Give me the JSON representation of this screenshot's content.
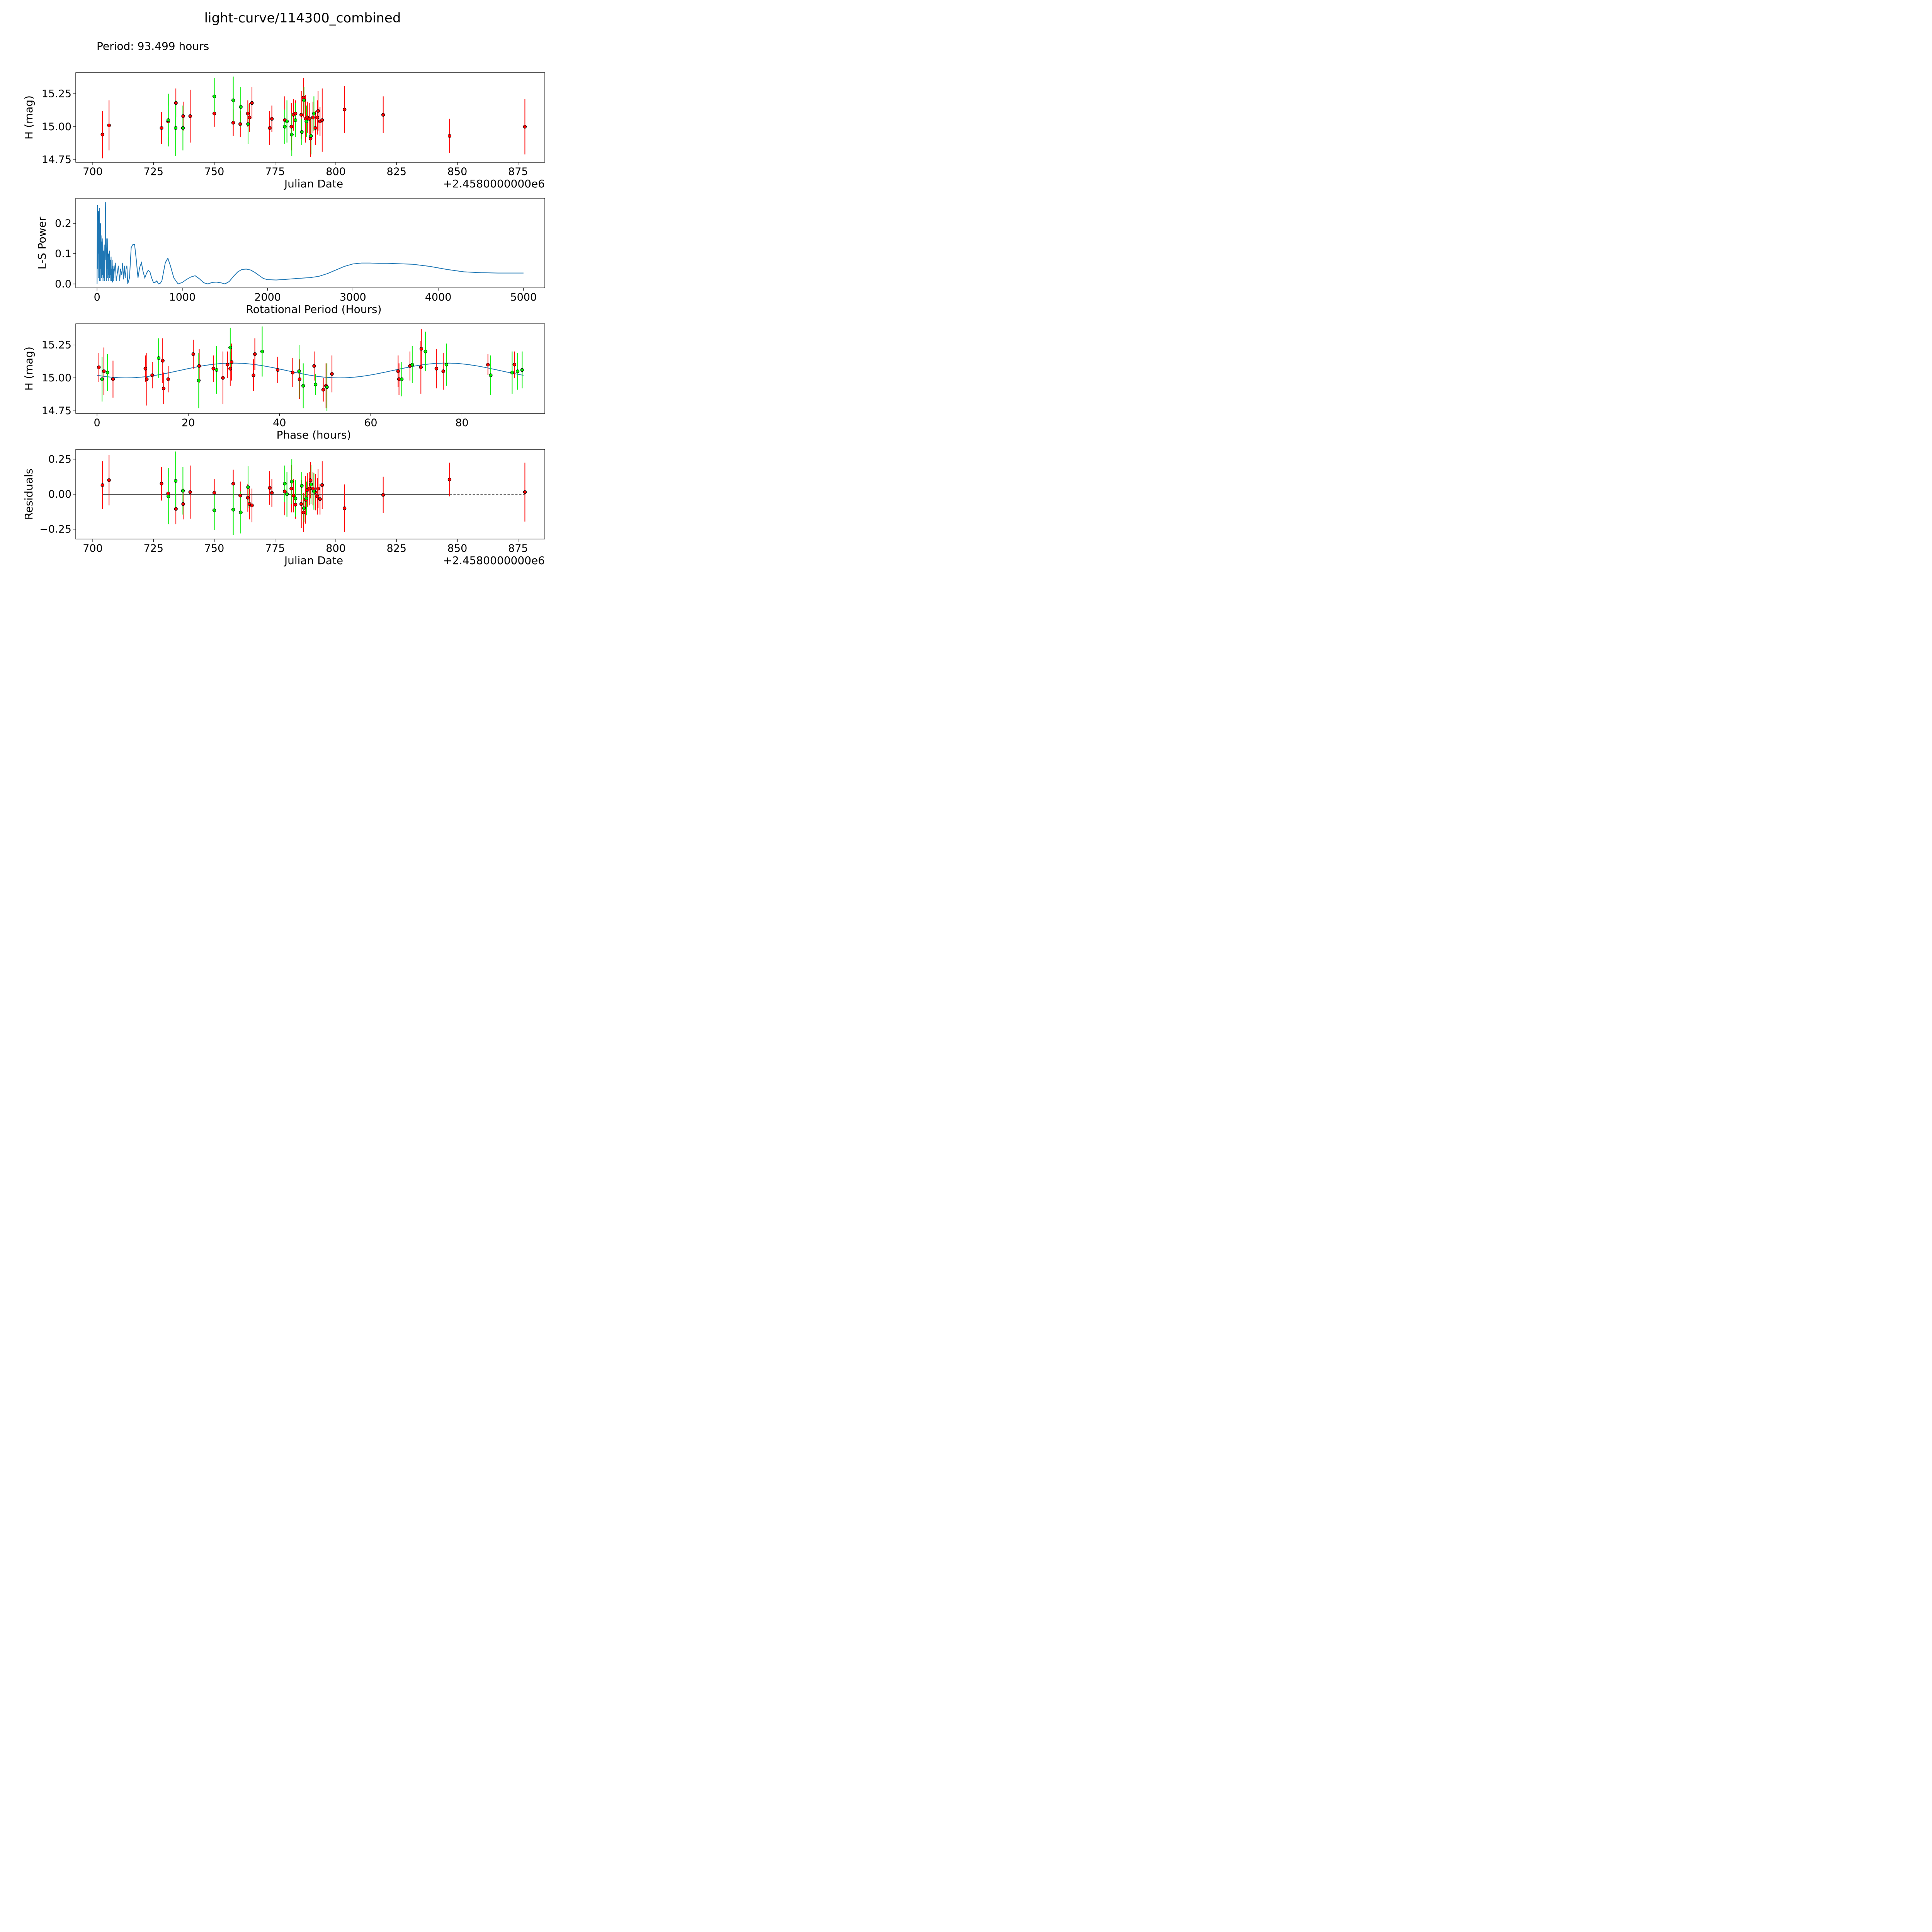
{
  "figure": {
    "title": "light-curve/114300_combined",
    "period_text": "Period: 93.499 hours"
  },
  "chart_data": [
    {
      "type": "scatter",
      "id": "raw",
      "xlabel": "Julian Date",
      "ylabel": "H (mag)",
      "offset_label": "+2.4580000000e6",
      "xlim": [
        693,
        886
      ],
      "ylim": [
        14.73,
        15.41
      ],
      "xticks": [
        700,
        725,
        750,
        775,
        800,
        825,
        850,
        875
      ],
      "yticks": [
        14.75,
        15.0,
        15.25
      ],
      "xtick_labels": [
        "700",
        "725",
        "750",
        "775",
        "800",
        "825",
        "850",
        "875"
      ],
      "ytick_labels": [
        "14.75",
        "15.00",
        "15.25"
      ],
      "series": [
        {
          "name": "red",
          "color": "#ff0000",
          "x": [
            704.0,
            706.7,
            728.3,
            731.0,
            734.2,
            737.2,
            740.1,
            750.0,
            757.8,
            760.7,
            763.8,
            764.5,
            765.5,
            772.8,
            773.7,
            779.0,
            781.7,
            782.6,
            783.4,
            785.8,
            786.7,
            787.6,
            788.3,
            789.1,
            789.6,
            790.6,
            791.6,
            792.4,
            792.7,
            793.5,
            794.4,
            803.6,
            819.5,
            846.8,
            877.8
          ],
          "y": [
            14.94,
            15.01,
            14.99,
            15.04,
            15.18,
            15.08,
            15.08,
            15.1,
            15.03,
            15.02,
            15.1,
            15.07,
            15.18,
            14.99,
            15.06,
            15.05,
            15.0,
            15.09,
            15.1,
            15.09,
            15.22,
            15.06,
            15.07,
            15.06,
            14.91,
            15.07,
            14.99,
            15.07,
            15.12,
            15.04,
            15.05,
            15.13,
            15.09,
            14.93,
            15.0
          ],
          "err": [
            0.18,
            0.19,
            0.12,
            0.12,
            0.11,
            0.11,
            0.2,
            0.1,
            0.1,
            0.1,
            0.1,
            0.11,
            0.12,
            0.13,
            0.1,
            0.18,
            0.18,
            0.12,
            0.1,
            0.18,
            0.15,
            0.18,
            0.12,
            0.12,
            0.14,
            0.12,
            0.13,
            0.13,
            0.15,
            0.11,
            0.24,
            0.18,
            0.14,
            0.13,
            0.21
          ]
        },
        {
          "name": "green",
          "color": "#00ee00",
          "x": [
            731.1,
            734.1,
            737.1,
            750.0,
            757.8,
            760.9,
            763.9,
            779.0,
            779.9,
            781.9,
            783.4,
            786.0,
            786.9,
            787.9,
            789.8,
            791.0
          ],
          "y": [
            15.05,
            14.99,
            14.99,
            15.23,
            15.2,
            15.15,
            15.02,
            15.0,
            15.04,
            14.94,
            15.05,
            14.96,
            15.2,
            15.04,
            14.93,
            15.1
          ],
          "err": [
            0.2,
            0.21,
            0.17,
            0.14,
            0.18,
            0.15,
            0.15,
            0.13,
            0.16,
            0.16,
            0.13,
            0.1,
            0.1,
            0.12,
            0.14,
            0.13
          ]
        }
      ]
    },
    {
      "type": "line",
      "id": "periodogram",
      "xlabel": "Rotational Period (Hours)",
      "ylabel": "L-S Power",
      "xlim": [
        -250,
        5250
      ],
      "ylim": [
        -0.013,
        0.283
      ],
      "xticks": [
        0,
        1000,
        2000,
        3000,
        4000,
        5000
      ],
      "yticks": [
        0.0,
        0.1,
        0.2
      ],
      "xtick_labels": [
        "0",
        "1000",
        "2000",
        "3000",
        "4000",
        "5000"
      ],
      "ytick_labels": [
        "0.0",
        "0.1",
        "0.2"
      ],
      "line_color": "#1f77b4",
      "x": [
        0,
        4,
        7,
        10,
        14,
        17,
        20,
        24,
        27,
        30,
        34,
        37,
        40,
        44,
        47,
        50,
        54,
        57,
        60,
        64,
        67,
        70,
        74,
        77,
        80,
        84,
        87,
        90,
        94,
        97,
        100,
        104,
        107,
        110,
        114,
        117,
        120,
        124,
        127,
        130,
        134,
        137,
        140,
        144,
        147,
        150,
        154,
        157,
        160,
        164,
        167,
        170,
        174,
        177,
        180,
        184,
        187,
        190,
        194,
        197,
        200,
        215,
        225,
        240,
        250,
        265,
        275,
        290,
        300,
        310,
        320,
        330,
        340,
        350,
        360,
        380,
        400,
        420,
        440,
        460,
        480,
        500,
        520,
        540,
        560,
        580,
        600,
        620,
        640,
        660,
        680,
        700,
        720,
        740,
        760,
        780,
        800,
        830,
        860,
        900,
        950,
        1000,
        1050,
        1100,
        1150,
        1200,
        1250,
        1300,
        1350,
        1400,
        1450,
        1500,
        1550,
        1600,
        1650,
        1700,
        1750,
        1800,
        1850,
        1900,
        1950,
        2000,
        2100,
        2200,
        2300,
        2400,
        2500,
        2600,
        2700,
        2800,
        2900,
        3000,
        3100,
        3200,
        3300,
        3400,
        3500,
        3700,
        3900,
        4100,
        4300,
        4500,
        4700,
        4900,
        5000
      ],
      "y": [
        0.0,
        0.26,
        0.05,
        0.21,
        0.02,
        0.24,
        0.1,
        0.18,
        0.01,
        0.25,
        0.05,
        0.13,
        0.2,
        0.01,
        0.16,
        0.09,
        0.02,
        0.14,
        0.06,
        0.03,
        0.15,
        0.01,
        0.11,
        0.06,
        0.02,
        0.13,
        0.04,
        0.01,
        0.1,
        0.22,
        0.27,
        0.08,
        0.15,
        0.01,
        0.12,
        0.05,
        0.15,
        0.02,
        0.09,
        0.03,
        0.1,
        0.01,
        0.07,
        0.11,
        0.02,
        0.06,
        0.01,
        0.08,
        0.03,
        0.09,
        0.01,
        0.05,
        0.02,
        0.08,
        0.005,
        0.04,
        0.06,
        0.01,
        0.05,
        0.02,
        0.04,
        0.07,
        0.01,
        0.04,
        0.06,
        0.01,
        0.05,
        0.03,
        0.07,
        0.015,
        0.06,
        0.02,
        0.05,
        0.06,
        0.0,
        0.02,
        0.12,
        0.13,
        0.13,
        0.08,
        0.02,
        0.055,
        0.07,
        0.04,
        0.02,
        0.035,
        0.045,
        0.04,
        0.02,
        0.005,
        0.005,
        0.01,
        0.0,
        0.002,
        0.01,
        0.04,
        0.07,
        0.085,
        0.06,
        0.02,
        0.0,
        0.005,
        0.015,
        0.023,
        0.027,
        0.017,
        0.004,
        0.0,
        0.005,
        0.006,
        0.004,
        0.0,
        0.008,
        0.025,
        0.04,
        0.048,
        0.049,
        0.046,
        0.038,
        0.028,
        0.018,
        0.014,
        0.013,
        0.015,
        0.017,
        0.019,
        0.021,
        0.025,
        0.034,
        0.046,
        0.058,
        0.066,
        0.069,
        0.069,
        0.068,
        0.068,
        0.067,
        0.065,
        0.058,
        0.048,
        0.04,
        0.037,
        0.036,
        0.036,
        0.036
      ]
    },
    {
      "type": "scatter",
      "id": "phased",
      "xlabel": "Phase (hours)",
      "ylabel": "H (mag)",
      "xlim": [
        -4.67,
        98.17
      ],
      "ylim": [
        14.73,
        15.41
      ],
      "xticks": [
        0,
        20,
        40,
        60,
        80
      ],
      "yticks": [
        14.75,
        15.0,
        15.25
      ],
      "xtick_labels": [
        "0",
        "20",
        "40",
        "60",
        "80"
      ],
      "ytick_labels": [
        "14.75",
        "15.00",
        "15.25"
      ],
      "fit_color": "#1f77b4",
      "fit": {
        "mean": 15.056,
        "amplitude": 0.056,
        "period_hours": 46.75,
        "peak_phase": 29.8,
        "x_range": [
          0,
          93.5
        ]
      },
      "series": [
        {
          "name": "red",
          "color": "#ff0000",
          "x": [
            0.4,
            1.5,
            3.5,
            10.6,
            10.9,
            12.1,
            14.4,
            14.6,
            15.6,
            21.1,
            22.4,
            25.5,
            27.6,
            28.6,
            29.2,
            29.5,
            34.3,
            34.6,
            39.6,
            42.9,
            44.4,
            47.6,
            49.6,
            50.2,
            51.5,
            66.0,
            66.2,
            68.6,
            71.0,
            71.1,
            74.4,
            75.9,
            85.7,
            91.5
          ],
          "y": [
            15.08,
            15.05,
            14.99,
            15.07,
            14.99,
            15.02,
            15.13,
            14.92,
            14.99,
            15.18,
            15.09,
            15.07,
            15.0,
            15.1,
            15.07,
            15.12,
            15.02,
            15.18,
            15.06,
            15.04,
            14.99,
            15.09,
            14.91,
            14.94,
            15.03,
            15.05,
            14.99,
            15.09,
            15.08,
            15.22,
            15.07,
            15.05,
            15.1,
            15.1
          ],
          "err": [
            0.11,
            0.18,
            0.14,
            0.1,
            0.2,
            0.1,
            0.17,
            0.12,
            0.1,
            0.11,
            0.13,
            0.1,
            0.2,
            0.1,
            0.13,
            0.14,
            0.12,
            0.12,
            0.1,
            0.11,
            0.15,
            0.11,
            0.09,
            0.17,
            0.14,
            0.12,
            0.12,
            0.11,
            0.2,
            0.15,
            0.15,
            0.14,
            0.08,
            0.1
          ]
        },
        {
          "name": "green",
          "color": "#00ee00",
          "x": [
            1.1,
            2.3,
            13.5,
            22.3,
            26.2,
            29.2,
            36.2,
            44.3,
            45.2,
            47.9,
            50.4,
            66.8,
            69.1,
            72.0,
            76.6,
            86.3,
            91.0,
            92.2,
            93.2
          ],
          "y": [
            14.99,
            15.04,
            15.15,
            14.98,
            15.06,
            15.23,
            15.2,
            15.05,
            14.94,
            14.95,
            14.93,
            14.99,
            15.1,
            15.2,
            15.1,
            15.02,
            15.04,
            15.05,
            15.06
          ],
          "err": [
            0.17,
            0.14,
            0.15,
            0.21,
            0.18,
            0.15,
            0.19,
            0.2,
            0.17,
            0.08,
            0.18,
            0.13,
            0.14,
            0.15,
            0.16,
            0.15,
            0.16,
            0.14,
            0.14
          ]
        }
      ]
    },
    {
      "type": "scatter",
      "id": "residuals",
      "xlabel": "Julian Date",
      "ylabel": "Residuals",
      "offset_label": "+2.4580000000e6",
      "xlim": [
        693,
        886
      ],
      "ylim": [
        -0.32,
        0.32
      ],
      "xticks": [
        700,
        725,
        750,
        775,
        800,
        825,
        850,
        875
      ],
      "yticks": [
        -0.25,
        0.0,
        0.25
      ],
      "xtick_labels": [
        "700",
        "725",
        "750",
        "775",
        "800",
        "825",
        "850",
        "875"
      ],
      "ytick_labels": [
        "−0.25",
        "0.00",
        "0.25"
      ],
      "zero_line": {
        "x_solid": [
          704.0,
          846.8
        ],
        "x_dashed": [
          846.8,
          877.8
        ]
      },
      "series": [
        {
          "name": "red",
          "color": "#ff0000",
          "x": [
            704.0,
            706.7,
            728.3,
            731.0,
            734.2,
            737.2,
            740.1,
            750.0,
            757.8,
            760.7,
            763.8,
            764.5,
            765.5,
            772.8,
            773.7,
            779.0,
            781.7,
            782.6,
            783.4,
            785.8,
            786.7,
            787.6,
            788.3,
            789.1,
            789.6,
            790.6,
            791.6,
            792.4,
            792.7,
            793.5,
            794.4,
            803.6,
            819.5,
            846.8,
            877.8
          ],
          "y": [
            0.065,
            0.1,
            0.075,
            0.005,
            -0.105,
            -0.07,
            0.015,
            0.01,
            0.075,
            -0.01,
            -0.025,
            -0.07,
            -0.08,
            0.045,
            0.01,
            0.02,
            0.04,
            -0.01,
            -0.075,
            -0.07,
            -0.13,
            -0.04,
            0.03,
            0.04,
            0.1,
            0.04,
            0.015,
            -0.015,
            0.04,
            -0.035,
            0.065,
            -0.1,
            -0.005,
            0.105,
            0.015
          ],
          "err": [
            0.17,
            0.18,
            0.12,
            0.12,
            0.11,
            0.11,
            0.19,
            0.1,
            0.1,
            0.1,
            0.1,
            0.11,
            0.12,
            0.12,
            0.1,
            0.17,
            0.17,
            0.12,
            0.1,
            0.17,
            0.14,
            0.17,
            0.12,
            0.12,
            0.13,
            0.12,
            0.13,
            0.13,
            0.14,
            0.11,
            0.17,
            0.17,
            0.13,
            0.12,
            0.21
          ]
        },
        {
          "name": "green",
          "color": "#00ee00",
          "x": [
            731.1,
            734.1,
            737.1,
            750.0,
            757.8,
            760.9,
            763.9,
            779.0,
            779.9,
            781.9,
            783.4,
            786.0,
            786.9,
            787.9,
            789.8,
            791.0
          ],
          "y": [
            -0.015,
            0.095,
            0.025,
            -0.115,
            -0.11,
            -0.13,
            0.05,
            0.075,
            0.0,
            0.09,
            -0.03,
            0.06,
            -0.1,
            -0.03,
            0.07,
            0.02
          ],
          "err": [
            0.2,
            0.21,
            0.17,
            0.14,
            0.18,
            0.15,
            0.15,
            0.13,
            0.16,
            0.16,
            0.13,
            0.1,
            0.1,
            0.12,
            0.14,
            0.13
          ]
        }
      ]
    }
  ]
}
